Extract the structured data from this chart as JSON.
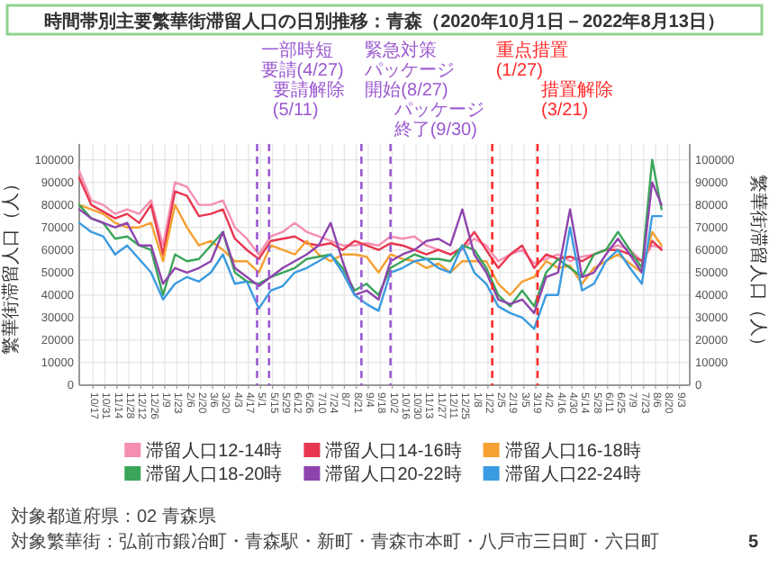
{
  "chart_data": {
    "type": "line",
    "title": "時間帯別主要繁華街滞留人口の日別推移：青森（2020年10月1日－2022年8月13日）",
    "ylabel": "繁華街滞留人口（人）",
    "y2label": "繁華街滞留人口（人）",
    "x": [
      "2020-10-01",
      "2020-10-15",
      "2020-10-29",
      "2020-11-12",
      "2020-11-26",
      "2020-12-10",
      "2020-12-24",
      "2021-01-07",
      "2021-01-21",
      "2021-02-04",
      "2021-02-18",
      "2021-03-04",
      "2021-03-18",
      "2021-04-01",
      "2021-04-15",
      "2021-04-29",
      "2021-05-13",
      "2021-05-27",
      "2021-06-10",
      "2021-06-24",
      "2021-07-08",
      "2021-07-22",
      "2021-08-05",
      "2021-08-19",
      "2021-09-02",
      "2021-09-16",
      "2021-09-30",
      "2021-10-14",
      "2021-10-28",
      "2021-11-11",
      "2021-11-25",
      "2021-12-09",
      "2021-12-23",
      "2022-01-06",
      "2022-01-20",
      "2022-02-03",
      "2022-02-17",
      "2022-03-03",
      "2022-03-17",
      "2022-03-31",
      "2022-04-14",
      "2022-04-28",
      "2022-05-12",
      "2022-05-26",
      "2022-06-09",
      "2022-06-23",
      "2022-07-07",
      "2022-07-21",
      "2022-08-02",
      "2022-08-13"
    ],
    "series": [
      {
        "name": "滞留人口12-14時",
        "color": "#f48fb1",
        "values": [
          95000,
          82000,
          80000,
          76000,
          78000,
          76000,
          82000,
          62000,
          90000,
          88000,
          80000,
          80000,
          82000,
          70000,
          65000,
          58000,
          66000,
          68000,
          72000,
          68000,
          66000,
          64000,
          62000,
          62000,
          63000,
          62000,
          66000,
          65000,
          66000,
          62000,
          60000,
          58000,
          60000,
          65000,
          62000,
          55000,
          58000,
          60000,
          54000,
          56000,
          58000,
          55000,
          57000,
          58000,
          60000,
          62000,
          60000,
          55000,
          62000,
          61000
        ]
      },
      {
        "name": "滞留人口14-16時",
        "color": "#e8364f",
        "values": [
          92000,
          80000,
          77000,
          74000,
          76000,
          72000,
          80000,
          58000,
          86000,
          84000,
          75000,
          76000,
          78000,
          65000,
          60000,
          56000,
          64000,
          65000,
          66000,
          63000,
          62000,
          63000,
          60000,
          64000,
          62000,
          60000,
          63000,
          62000,
          60000,
          58000,
          60000,
          58000,
          61000,
          68000,
          60000,
          52000,
          58000,
          62000,
          52000,
          58000,
          56000,
          57000,
          55000,
          58000,
          60000,
          60000,
          58000,
          55000,
          64000,
          60000
        ]
      },
      {
        "name": "滞留人口16-18時",
        "color": "#f5a031",
        "values": [
          80000,
          78000,
          76000,
          72000,
          70000,
          70000,
          72000,
          55000,
          80000,
          70000,
          62000,
          64000,
          60000,
          55000,
          55000,
          50000,
          62000,
          60000,
          58000,
          64000,
          58000,
          55000,
          58000,
          58000,
          57000,
          50000,
          58000,
          56000,
          55000,
          52000,
          54000,
          50000,
          55000,
          55000,
          55000,
          45000,
          40000,
          46000,
          48000,
          55000,
          52000,
          53000,
          45000,
          52000,
          55000,
          58000,
          54000,
          50000,
          68000,
          62000
        ]
      },
      {
        "name": "滞留人口18-20時",
        "color": "#3aa55a",
        "values": [
          80000,
          74000,
          72000,
          65000,
          66000,
          62000,
          60000,
          40000,
          58000,
          55000,
          56000,
          62000,
          68000,
          50000,
          46000,
          45000,
          48000,
          50000,
          52000,
          56000,
          57000,
          58000,
          52000,
          42000,
          45000,
          40000,
          52000,
          55000,
          58000,
          56000,
          56000,
          55000,
          62000,
          60000,
          52000,
          40000,
          35000,
          42000,
          35000,
          50000,
          56000,
          52000,
          48000,
          58000,
          60000,
          68000,
          60000,
          52000,
          100000,
          78000
        ]
      },
      {
        "name": "滞留人口20-22時",
        "color": "#8e44ad",
        "values": [
          78000,
          74000,
          72000,
          70000,
          72000,
          62000,
          62000,
          45000,
          52000,
          50000,
          52000,
          55000,
          68000,
          52000,
          48000,
          44000,
          48000,
          52000,
          55000,
          58000,
          62000,
          72000,
          55000,
          40000,
          42000,
          38000,
          55000,
          58000,
          60000,
          64000,
          65000,
          62000,
          78000,
          58000,
          50000,
          38000,
          36000,
          38000,
          32000,
          48000,
          50000,
          78000,
          48000,
          50000,
          58000,
          65000,
          58000,
          50000,
          90000,
          80000
        ]
      },
      {
        "name": "滞留人口22-24時",
        "color": "#3b9be0",
        "values": [
          72000,
          68000,
          66000,
          58000,
          62000,
          56000,
          50000,
          38000,
          45000,
          48000,
          46000,
          50000,
          58000,
          45000,
          46000,
          34000,
          42000,
          44000,
          50000,
          52000,
          55000,
          58000,
          50000,
          40000,
          36000,
          33000,
          50000,
          52000,
          55000,
          56000,
          52000,
          50000,
          62000,
          50000,
          45000,
          35000,
          32000,
          30000,
          25000,
          40000,
          40000,
          70000,
          42000,
          45000,
          55000,
          60000,
          52000,
          45000,
          75000,
          75000
        ]
      }
    ],
    "xlim": [
      "2020-10-01",
      "2022-09-15"
    ],
    "xticks": [
      {
        "value": "2020-10-17",
        "label": "10/17"
      },
      {
        "value": "2020-10-31",
        "label": "10/31"
      },
      {
        "value": "2020-11-14",
        "label": "11/14"
      },
      {
        "value": "2020-11-28",
        "label": "11/28"
      },
      {
        "value": "2020-12-12",
        "label": "12/12"
      },
      {
        "value": "2020-12-26",
        "label": "12/26"
      },
      {
        "value": "2021-01-09",
        "label": "1/9"
      },
      {
        "value": "2021-01-23",
        "label": "1/23"
      },
      {
        "value": "2021-02-06",
        "label": "2/6"
      },
      {
        "value": "2021-02-20",
        "label": "2/20"
      },
      {
        "value": "2021-03-06",
        "label": "3/6"
      },
      {
        "value": "2021-03-20",
        "label": "3/20"
      },
      {
        "value": "2021-04-03",
        "label": "4/3"
      },
      {
        "value": "2021-04-17",
        "label": "4/17"
      },
      {
        "value": "2021-05-01",
        "label": "5/1"
      },
      {
        "value": "2021-05-15",
        "label": "5/15"
      },
      {
        "value": "2021-05-29",
        "label": "5/29"
      },
      {
        "value": "2021-06-12",
        "label": "6/12"
      },
      {
        "value": "2021-06-26",
        "label": "6/26"
      },
      {
        "value": "2021-07-10",
        "label": "7/10"
      },
      {
        "value": "2021-07-24",
        "label": "7/24"
      },
      {
        "value": "2021-08-07",
        "label": "8/7"
      },
      {
        "value": "2021-08-21",
        "label": "8/21"
      },
      {
        "value": "2021-09-04",
        "label": "9/4"
      },
      {
        "value": "2021-09-18",
        "label": "9/18"
      },
      {
        "value": "2021-10-02",
        "label": "10/2"
      },
      {
        "value": "2021-10-16",
        "label": "10/16"
      },
      {
        "value": "2021-10-30",
        "label": "10/30"
      },
      {
        "value": "2021-11-13",
        "label": "11/13"
      },
      {
        "value": "2021-11-27",
        "label": "11/27"
      },
      {
        "value": "2021-12-11",
        "label": "12/11"
      },
      {
        "value": "2021-12-25",
        "label": "12/25"
      },
      {
        "value": "2022-01-08",
        "label": "1/8"
      },
      {
        "value": "2022-01-22",
        "label": "1/22"
      },
      {
        "value": "2022-02-05",
        "label": "2/5"
      },
      {
        "value": "2022-02-19",
        "label": "2/19"
      },
      {
        "value": "2022-03-05",
        "label": "3/5"
      },
      {
        "value": "2022-03-19",
        "label": "3/19"
      },
      {
        "value": "2022-04-02",
        "label": "4/2"
      },
      {
        "value": "2022-04-16",
        "label": "4/16"
      },
      {
        "value": "2022-04-30",
        "label": "4/30"
      },
      {
        "value": "2022-05-14",
        "label": "5/14"
      },
      {
        "value": "2022-05-28",
        "label": "5/28"
      },
      {
        "value": "2022-06-11",
        "label": "6/11"
      },
      {
        "value": "2022-06-25",
        "label": "6/25"
      },
      {
        "value": "2022-07-09",
        "label": "7/9"
      },
      {
        "value": "2022-07-23",
        "label": "7/23"
      },
      {
        "value": "2022-08-06",
        "label": "8/6"
      },
      {
        "value": "2022-08-20",
        "label": "8/20"
      },
      {
        "value": "2022-09-03",
        "label": "9/3"
      }
    ],
    "ylim": [
      0,
      107000
    ],
    "yticks": [
      0,
      10000,
      20000,
      30000,
      40000,
      50000,
      60000,
      70000,
      80000,
      90000,
      100000
    ],
    "y2lim": [
      0,
      107000
    ],
    "y2ticks": [
      0,
      10000,
      20000,
      30000,
      40000,
      50000,
      60000,
      70000,
      80000,
      90000,
      100000
    ],
    "ref_lines": [
      {
        "axis": "x",
        "value": "2021-04-27",
        "label": "一部時短要請(4/27)",
        "color": "#9b59d0",
        "line_style": "dashed"
      },
      {
        "axis": "x",
        "value": "2021-05-11",
        "label": "要請解除(5/11)",
        "color": "#9b59d0",
        "line_style": "dashed"
      },
      {
        "axis": "x",
        "value": "2021-08-27",
        "label": "緊急対策パッケージ開始(8/27)",
        "color": "#9b59d0",
        "line_style": "dashed"
      },
      {
        "axis": "x",
        "value": "2021-09-30",
        "label": "パッケージ終了(9/30)",
        "color": "#9b59d0",
        "line_style": "dashed"
      },
      {
        "axis": "x",
        "value": "2022-01-27",
        "label": "重点措置(1/27)",
        "color": "#ff2a2a",
        "line_style": "dashed"
      },
      {
        "axis": "x",
        "value": "2022-03-21",
        "label": "措置解除(3/21)",
        "color": "#ff2a2a",
        "line_style": "dashed"
      }
    ],
    "legend": "bottom",
    "grid": true,
    "annotations": [
      "対象都道府県：02 青森県",
      "対象繁華街：弘前市鍛冶町・青森駅・新町・青森市本町・八戸市三日町・六日町",
      "5"
    ]
  }
}
